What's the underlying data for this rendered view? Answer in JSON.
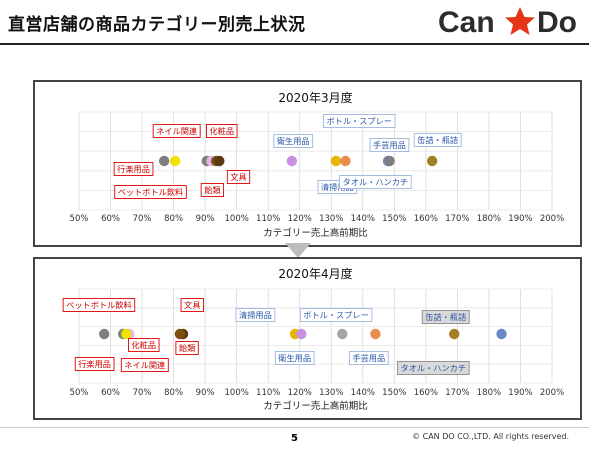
{
  "page": {
    "title": "直営店舗の商品カテゴリー別売上状況",
    "logo": {
      "left": "Can",
      "right": "Do",
      "star_color": "#e53517",
      "text_color": "#2c2c2c"
    },
    "page_number": "5",
    "copyright": "© CAN DO CO.,LTD. All rights reserved."
  },
  "chart_data": [
    {
      "type": "scatter",
      "title": "2020年3月度",
      "xlabel": "カテゴリー売上高前期比",
      "xlim": [
        50,
        200
      ],
      "x_ticks": [
        "50%",
        "60%",
        "70%",
        "80%",
        "90%",
        "100%",
        "110%",
        "120%",
        "130%",
        "140%",
        "150%",
        "160%",
        "170%",
        "180%",
        "190%",
        "200%"
      ],
      "points": [
        {
          "name": "行楽用品",
          "x": 77,
          "color": "#7f7f7f",
          "group": "red"
        },
        {
          "name": "ネイル関連",
          "x": 80.5,
          "color": "#f2e200",
          "group": "red"
        },
        {
          "name": "ペットボトル飲料",
          "x": 90.5,
          "color": "#7f7f7f",
          "group": "red"
        },
        {
          "name": "化粧品",
          "x": 92,
          "color": "#e8b6ea",
          "group": "red"
        },
        {
          "name": "飴類",
          "x": 93.5,
          "color": "#7b4f0e",
          "group": "red"
        },
        {
          "name": "文具",
          "x": 94.5,
          "color": "#5b3a12",
          "group": "red"
        },
        {
          "name": "衛生用品",
          "x": 117.5,
          "color": "#c98fe0",
          "group": "blue"
        },
        {
          "name": "清掃用品",
          "x": 131.5,
          "color": "#e5b700",
          "group": "blue"
        },
        {
          "name": "ボトル・スプレー",
          "x": 134.5,
          "color": "#e98c4c",
          "group": "blue"
        },
        {
          "name": "手芸用品",
          "x": 148,
          "color": "#6888c8",
          "group": "blue"
        },
        {
          "name": "タオル・ハンカチ",
          "x": 148.5,
          "color": "#7f7f7f",
          "group": "blue"
        },
        {
          "name": "缶詰・瓶詰",
          "x": 162,
          "color": "#a08020",
          "group": "blue"
        }
      ]
    },
    {
      "type": "scatter",
      "title": "2020年4月度",
      "xlabel": "カテゴリー売上高前期比",
      "xlim": [
        50,
        200
      ],
      "x_ticks": [
        "50%",
        "60%",
        "70%",
        "80%",
        "90%",
        "100%",
        "110%",
        "120%",
        "130%",
        "140%",
        "150%",
        "160%",
        "170%",
        "180%",
        "190%",
        "200%"
      ],
      "points": [
        {
          "name": "行楽用品",
          "x": 58,
          "color": "#7f7f7f",
          "group": "red"
        },
        {
          "name": "ペットボトル飲料",
          "x": 64,
          "color": "#7f7f7f",
          "group": "red"
        },
        {
          "name": "化粧品",
          "x": 66,
          "color": "#e8b6ea",
          "group": "red"
        },
        {
          "name": "ネイル関連",
          "x": 65,
          "color": "#f2e200",
          "group": "red"
        },
        {
          "name": "文具",
          "x": 83,
          "color": "#5b3a12",
          "group": "red"
        },
        {
          "name": "飴類",
          "x": 82,
          "color": "#7b4f0e",
          "group": "red"
        },
        {
          "name": "清掃用品",
          "x": 118.5,
          "color": "#e5b700",
          "group": "blue"
        },
        {
          "name": "衛生用品",
          "x": 120.5,
          "color": "#c98fe0",
          "group": "blue"
        },
        {
          "name": "ボトル・スプレー",
          "x": 133.5,
          "color": "#a6a6a6",
          "group": "blue"
        },
        {
          "name": "手芸用品",
          "x": 144,
          "color": "#e98c4c",
          "group": "blue"
        },
        {
          "name": "缶詰・瓶詰",
          "x": 169,
          "color": "#a08020",
          "group": "gray"
        },
        {
          "name": "タオル・ハンカチ",
          "x": 184,
          "color": "#6888c8",
          "group": "gray"
        }
      ]
    }
  ]
}
